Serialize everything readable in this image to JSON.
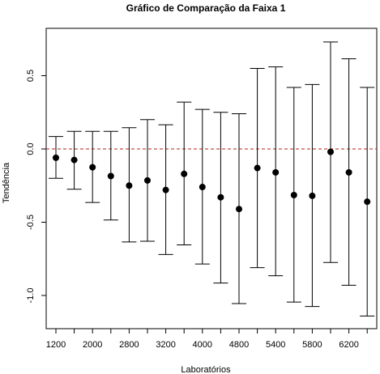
{
  "chart_data": {
    "type": "scatter",
    "title": "Gráfico de Comparação da Faixa 1",
    "xlabel": "Laboratórios",
    "ylabel": "Tendência",
    "x_tick_labels": [
      "1200",
      "2000",
      "2800",
      "3200",
      "4000",
      "4800",
      "5400",
      "5800",
      "6200"
    ],
    "y_tick_labels": [
      "0.5",
      "0.0",
      "-0.5",
      "-1.0"
    ],
    "y_ticks": [
      0.5,
      0.0,
      -0.5,
      -1.0
    ],
    "ylim": [
      -1.22,
      0.77
    ],
    "reference_line": {
      "y": 0.0,
      "style": "dashed",
      "color": "#b22222"
    },
    "colors": {
      "points": "#000000",
      "error_bars": "#000000",
      "reference": "#b22222"
    },
    "series": [
      {
        "values": [
          -0.06,
          -0.075,
          -0.125,
          -0.185,
          -0.25,
          -0.215,
          -0.28,
          -0.17,
          -0.26,
          -0.33,
          -0.41,
          -0.13,
          -0.16,
          -0.315,
          -0.32,
          -0.02,
          -0.16,
          -0.36
        ],
        "lower": [
          -0.2,
          -0.275,
          -0.365,
          -0.485,
          -0.635,
          -0.63,
          -0.72,
          -0.655,
          -0.785,
          -0.915,
          -1.055,
          -0.81,
          -0.865,
          -1.045,
          -1.075,
          -0.775,
          -0.93,
          -1.14
        ],
        "upper": [
          0.085,
          0.12,
          0.12,
          0.12,
          0.145,
          0.2,
          0.165,
          0.32,
          0.27,
          0.25,
          0.24,
          0.55,
          0.56,
          0.42,
          0.44,
          0.73,
          0.615,
          0.42
        ]
      }
    ]
  }
}
